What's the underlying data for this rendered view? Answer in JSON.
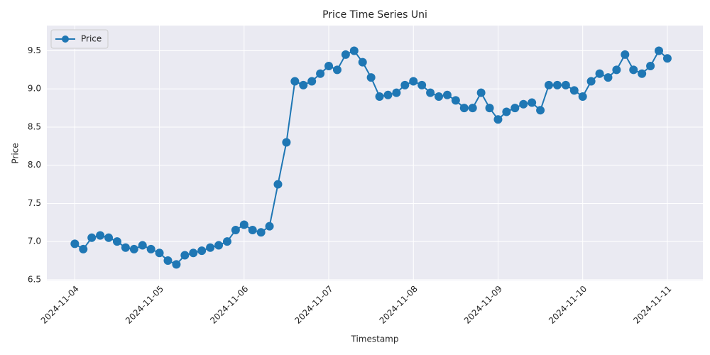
{
  "chart_data": {
    "type": "line",
    "title": "Price Time Series Uni",
    "x_label": "Timestamp",
    "y_label": "Price",
    "x": [
      20031,
      20031.1,
      20031.2,
      20031.3,
      20031.4,
      20031.5,
      20031.6,
      20031.7,
      20031.8,
      20031.9,
      20032,
      20032.1,
      20032.2,
      20032.3,
      20032.4,
      20032.5,
      20032.6,
      20032.7,
      20032.8,
      20032.9,
      20033,
      20033.1,
      20033.2,
      20033.3,
      20033.4,
      20033.5,
      20033.6,
      20033.7,
      20033.8,
      20033.9,
      20034,
      20034.1,
      20034.2,
      20034.3,
      20034.4,
      20034.5,
      20034.6,
      20034.7,
      20034.8,
      20034.9,
      20035,
      20035.1,
      20035.2,
      20035.3,
      20035.4,
      20035.5,
      20035.6,
      20035.7,
      20035.8,
      20035.9,
      20036,
      20036.1,
      20036.2,
      20036.3,
      20036.4,
      20036.5,
      20036.6,
      20036.7,
      20036.8,
      20036.9,
      20037,
      20037.1,
      20037.2,
      20037.3,
      20037.4,
      20037.5,
      20037.6,
      20037.7,
      20037.8,
      20037.9,
      20038
    ],
    "series": [
      {
        "name": "Price",
        "color": "#1f77b4",
        "values": [
          6.97,
          6.9,
          7.05,
          7.08,
          7.05,
          7.0,
          6.92,
          6.9,
          6.95,
          6.9,
          6.85,
          6.75,
          6.7,
          6.82,
          6.85,
          6.88,
          6.92,
          6.95,
          7.0,
          7.15,
          7.22,
          7.15,
          7.12,
          7.2,
          7.75,
          8.3,
          9.1,
          9.05,
          9.1,
          9.2,
          9.3,
          9.25,
          9.45,
          9.5,
          9.35,
          9.15,
          8.9,
          8.92,
          8.95,
          9.05,
          9.1,
          9.05,
          8.95,
          8.9,
          8.92,
          8.85,
          8.75,
          8.75,
          8.95,
          8.75,
          8.6,
          8.7,
          8.75,
          8.8,
          8.82,
          8.72,
          9.05,
          9.05,
          9.05,
          8.98,
          8.9,
          9.1,
          9.2,
          9.15,
          9.25,
          9.45,
          9.25,
          9.2,
          9.3,
          9.5,
          9.4
        ]
      }
    ],
    "xlim": [
      20030.67,
      20038.42
    ],
    "xticks": [
      {
        "value": 20031,
        "label": "2024-11-04"
      },
      {
        "value": 20032,
        "label": "2024-11-05"
      },
      {
        "value": 20033,
        "label": "2024-11-06"
      },
      {
        "value": 20034,
        "label": "2024-11-07"
      },
      {
        "value": 20035,
        "label": "2024-11-08"
      },
      {
        "value": 20036,
        "label": "2024-11-09"
      },
      {
        "value": 20037,
        "label": "2024-11-10"
      },
      {
        "value": 20038,
        "label": "2024-11-11"
      }
    ],
    "ylim": [
      6.49,
      9.83
    ],
    "yticks": [
      {
        "value": 6.5,
        "label": "6.5"
      },
      {
        "value": 7,
        "label": "7.0"
      },
      {
        "value": 7.5,
        "label": "7.5"
      },
      {
        "value": 8,
        "label": "8.0"
      },
      {
        "value": 8.5,
        "label": "8.5"
      },
      {
        "value": 9,
        "label": "9.0"
      },
      {
        "value": 9.5,
        "label": "9.5"
      }
    ],
    "grid": true,
    "legend": "upper left"
  }
}
